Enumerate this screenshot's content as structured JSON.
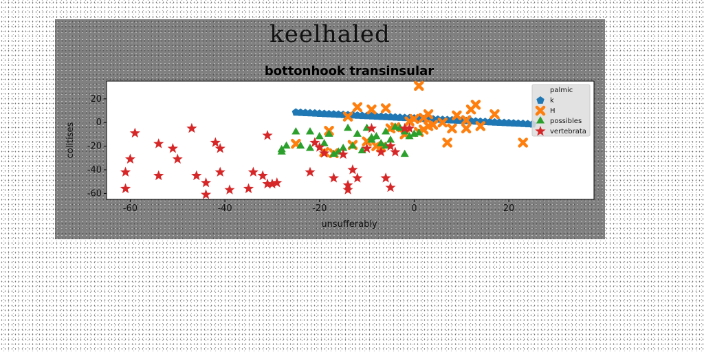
{
  "figure_title": "keelhaled",
  "chart_data": {
    "type": "scatter",
    "title": "bottonhook transinsular",
    "xlabel": "unsufferably",
    "ylabel": "colitises",
    "xlim": [
      -65,
      38
    ],
    "ylim": [
      -65,
      35
    ],
    "xticks": [
      -60,
      -40,
      -20,
      0,
      20
    ],
    "yticks": [
      -60,
      -40,
      -20,
      0,
      20
    ],
    "grid": false,
    "legend_title": "palmic",
    "legend_position": "top-right",
    "series": [
      {
        "name": "k",
        "marker": "pentagon",
        "color": "#1f77b4",
        "x": [
          -25,
          -24,
          -23,
          -22,
          -21,
          -20,
          -19,
          -18,
          -17,
          -16,
          -15,
          -14,
          -13,
          -12,
          -11,
          -10,
          -9,
          -8,
          -7,
          -6,
          -5,
          -4,
          -3,
          -2,
          -1,
          0,
          1,
          2,
          3,
          4,
          5,
          6,
          7,
          8,
          9,
          10,
          11,
          12,
          13,
          14,
          15,
          16,
          17,
          18,
          19,
          20,
          21,
          22,
          23,
          24,
          25
        ],
        "y": [
          8.6,
          8.4,
          8.2,
          8.0,
          7.8,
          7.6,
          7.4,
          7.2,
          7.0,
          6.8,
          6.6,
          6.4,
          6.2,
          6.0,
          5.8,
          5.6,
          5.4,
          5.2,
          5.0,
          4.8,
          4.6,
          4.4,
          4.2,
          4.0,
          3.8,
          3.6,
          3.4,
          3.2,
          3.0,
          2.8,
          2.6,
          2.4,
          2.2,
          2.0,
          1.8,
          1.6,
          1.4,
          1.2,
          1.0,
          0.8,
          0.6,
          0.4,
          0.2,
          0.0,
          -0.2,
          -0.4,
          -0.6,
          -0.8,
          -1.0,
          -1.2,
          -1.4
        ]
      },
      {
        "name": "H",
        "marker": "x-filled",
        "color": "#ff7f0e",
        "x": [
          1,
          -12,
          -9,
          -6,
          -14,
          -18,
          13,
          12,
          17,
          9,
          3,
          0,
          2,
          -1,
          11,
          14,
          8,
          4,
          -25,
          -17,
          -8,
          -5,
          -2,
          1,
          3,
          6,
          7,
          11,
          -13,
          -19,
          -10,
          -7,
          23,
          2,
          -4
        ],
        "y": [
          31,
          13,
          11,
          12,
          5,
          -7,
          15,
          11,
          7,
          6,
          7,
          3,
          4,
          1,
          2,
          -3,
          -5,
          -2,
          -18,
          -26,
          -20,
          -5,
          -10,
          -8,
          -3,
          0,
          -17,
          -5,
          -19,
          -25,
          -16,
          -21,
          -17,
          -6,
          -4
        ]
      },
      {
        "name": "possibles",
        "marker": "triangle",
        "color": "#2ca02c",
        "x": [
          -28,
          -25,
          -22,
          -20,
          -18,
          -14,
          -12,
          -10,
          -8,
          -6,
          -4,
          -2,
          0,
          1,
          -27,
          -24,
          -19,
          -16,
          -13,
          -11,
          -9,
          -7,
          -5,
          -3,
          -1,
          -28,
          -22,
          -17,
          -15,
          -9,
          -6,
          -2
        ],
        "y": [
          -25,
          -8,
          -8,
          -12,
          -10,
          -5,
          -10,
          -5,
          -12,
          -8,
          -4,
          -8,
          -10,
          -9,
          -20,
          -20,
          -18,
          -25,
          -20,
          -24,
          -15,
          -18,
          -15,
          -5,
          -12,
          -23,
          -22,
          -27,
          -22,
          -13,
          -20,
          -27
        ]
      },
      {
        "name": "vertebrata",
        "marker": "star",
        "color": "#d62728",
        "x": [
          -59,
          -61,
          -60,
          -54,
          -54,
          -50,
          -51,
          -47,
          -46,
          -44,
          -44,
          -42,
          -41,
          -41,
          -39,
          -35,
          -34,
          -32,
          -31,
          -30,
          -29,
          -31,
          -22,
          -21,
          -20,
          -19,
          -17,
          -15,
          -14,
          -14,
          -13,
          -12,
          -10,
          -9,
          -6,
          -5,
          -7,
          -5,
          -2,
          -1,
          -4,
          -61
        ],
        "y": [
          -9,
          -42,
          -31,
          -45,
          -18,
          -31,
          -22,
          -5,
          -45,
          -51,
          -61,
          -17,
          -42,
          -22,
          -57,
          -56,
          -42,
          -45,
          -52,
          -52,
          -51,
          -11,
          -42,
          -17,
          -21,
          -26,
          -47,
          -27,
          -53,
          -57,
          -40,
          -47,
          -22,
          -5,
          -47,
          -55,
          -25,
          -20,
          -5,
          -5,
          -25,
          -56
        ]
      }
    ]
  }
}
